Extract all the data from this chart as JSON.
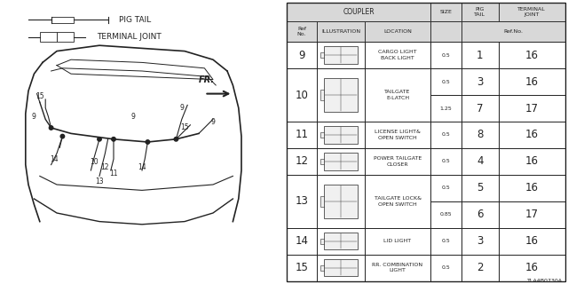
{
  "bg_color": "#ffffff",
  "line_color": "#222222",
  "text_color": "#222222",
  "header_bg": "#d8d8d8",
  "rows": [
    {
      "ref": "9",
      "location": "CARGO LIGHT\nBACK LIGHT",
      "sizes": [
        "0.5"
      ],
      "pig_tail": [
        "1"
      ],
      "term_joint": [
        "16"
      ]
    },
    {
      "ref": "10",
      "location": "TAILGATE\nE-LATCH",
      "sizes": [
        "0.5",
        "1.25"
      ],
      "pig_tail": [
        "3",
        "7"
      ],
      "term_joint": [
        "16",
        "17"
      ]
    },
    {
      "ref": "11",
      "location": "LICENSE LIGHT&\nOPEN SWITCH",
      "sizes": [
        "0.5"
      ],
      "pig_tail": [
        "8"
      ],
      "term_joint": [
        "16"
      ]
    },
    {
      "ref": "12",
      "location": "POWER TAILGATE\nCLOSER",
      "sizes": [
        "0.5"
      ],
      "pig_tail": [
        "4"
      ],
      "term_joint": [
        "16"
      ]
    },
    {
      "ref": "13",
      "location": "TAILGATE LOCK&\nOPEN SWITCH",
      "sizes": [
        "0.5",
        "0.85"
      ],
      "pig_tail": [
        "5",
        "6"
      ],
      "term_joint": [
        "16",
        "17"
      ]
    },
    {
      "ref": "14",
      "location": "LID LIGHT",
      "sizes": [
        "0.5"
      ],
      "pig_tail": [
        "3"
      ],
      "term_joint": [
        "16"
      ]
    },
    {
      "ref": "15",
      "location": "RR. COMBINATION\nLIGHT",
      "sizes": [
        "0.5"
      ],
      "pig_tail": [
        "2"
      ],
      "term_joint": [
        "16"
      ]
    }
  ],
  "col_header_coupler": "COUPLER",
  "col_header_size": "SIZE",
  "col_header_pig": "PIG\nTAIL",
  "col_header_terminal": "TERMINAL\nJOINT",
  "col_subheader_ref": "Ref\nNo.",
  "col_subheader_illus": "ILLUSTRATION",
  "col_subheader_loc": "LOCATION",
  "col_subheader_refno": "Ref.No.",
  "legend_pig_tail": "PIG TAIL",
  "legend_terminal": "TERMINAL JOINT",
  "part_number": "TLA4B0730A",
  "fr_label": "FR."
}
